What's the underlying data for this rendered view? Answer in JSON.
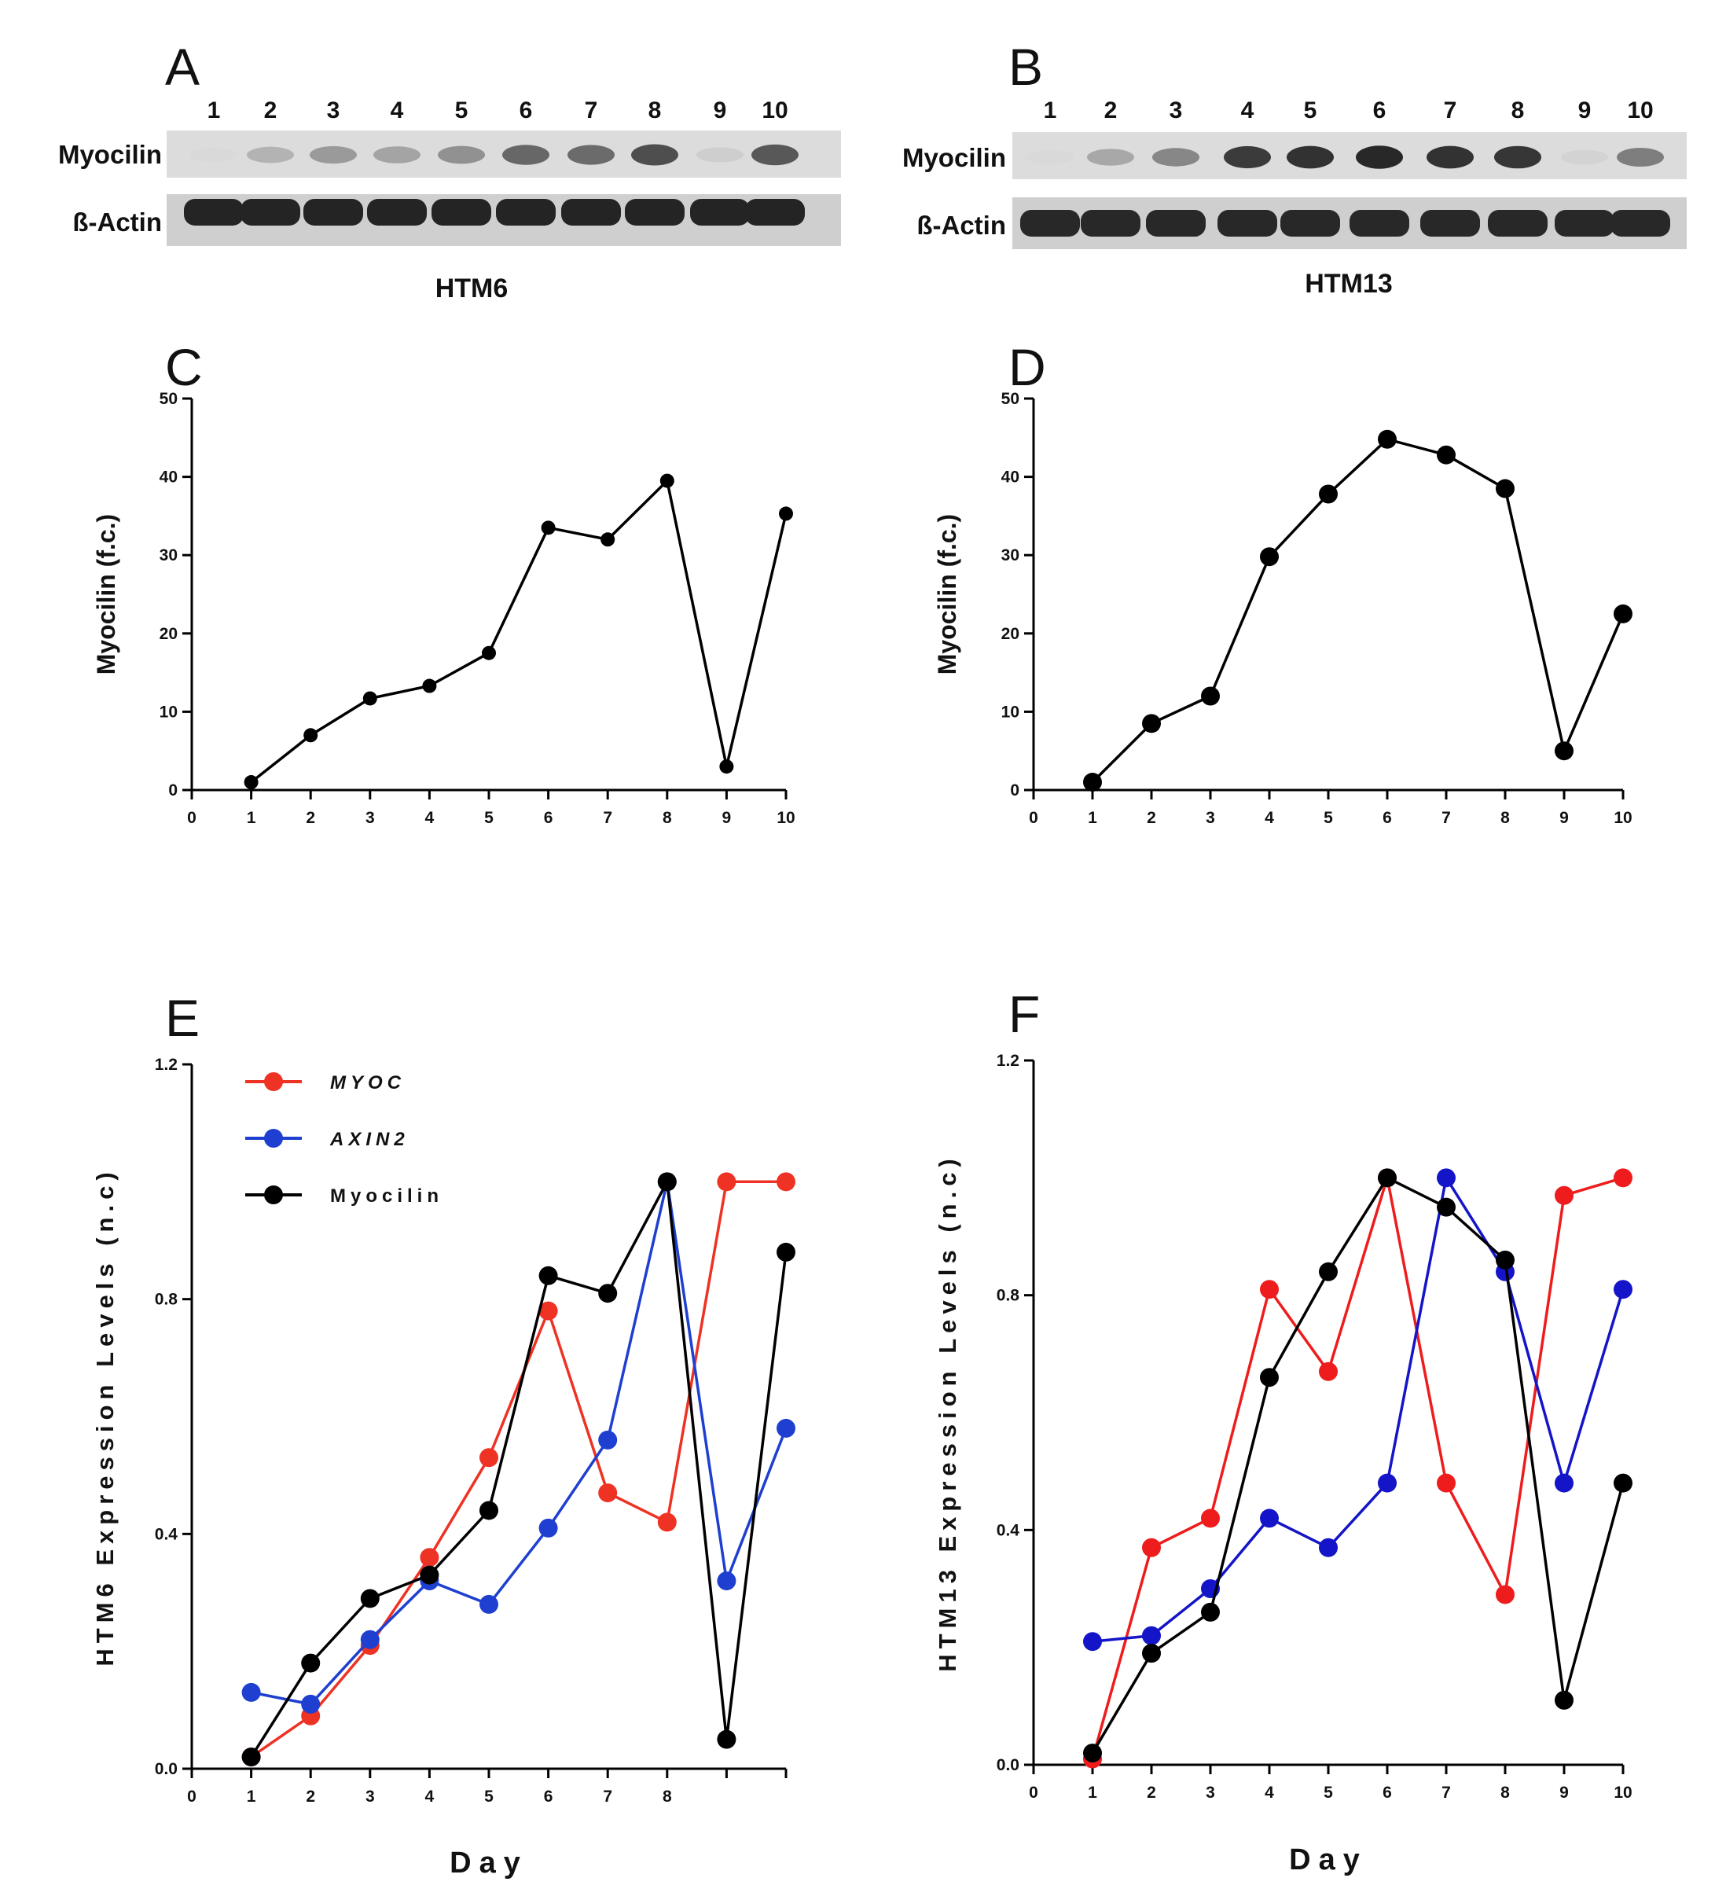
{
  "panels": {
    "A": {
      "letter": "A",
      "lanes": [
        "1",
        "2",
        "3",
        "4",
        "5",
        "6",
        "7",
        "8",
        "9",
        "10"
      ],
      "row_labels": [
        "Myocilin",
        "ß-Actin"
      ],
      "cell_line": "HTM6",
      "myocilin_band_intensity": [
        0.02,
        0.22,
        0.35,
        0.3,
        0.4,
        0.62,
        0.6,
        0.75,
        0.08,
        0.7
      ],
      "actin_band_intensity": [
        0.92,
        0.92,
        0.92,
        0.92,
        0.92,
        0.92,
        0.92,
        0.92,
        0.92,
        0.92
      ]
    },
    "B": {
      "letter": "B",
      "lanes": [
        "1",
        "2",
        "3",
        "4",
        "5",
        "6",
        "7",
        "8",
        "9",
        "10"
      ],
      "row_labels": [
        "Myocilin",
        "ß-Actin"
      ],
      "cell_line": "HTM13",
      "myocilin_band_intensity": [
        0.02,
        0.28,
        0.45,
        0.85,
        0.9,
        0.95,
        0.9,
        0.88,
        0.05,
        0.5
      ],
      "actin_band_intensity": [
        0.9,
        0.9,
        0.9,
        0.9,
        0.9,
        0.9,
        0.9,
        0.9,
        0.9,
        0.9
      ]
    }
  },
  "chart_data": [
    {
      "panel": "C",
      "type": "line",
      "ylabel": "Myocilin (f.c.)",
      "xlabel": "",
      "xlim": [
        0,
        10
      ],
      "ylim": [
        0,
        50
      ],
      "xticks": [
        "0",
        "1",
        "2",
        "3",
        "4",
        "5",
        "6",
        "7",
        "8",
        "9",
        "10"
      ],
      "yticks": [
        "0",
        "10",
        "20",
        "30",
        "40",
        "50"
      ],
      "series": [
        {
          "color": "#000000",
          "marker_size": "small",
          "x": [
            1,
            2,
            3,
            4,
            5,
            6,
            7,
            8,
            9,
            10
          ],
          "y": [
            1,
            7,
            11.7,
            13.3,
            17.5,
            33.5,
            32,
            39.5,
            3,
            35.3
          ]
        }
      ]
    },
    {
      "panel": "D",
      "type": "line",
      "ylabel": "Myocilin (f.c.)",
      "xlabel": "",
      "xlim": [
        0,
        10
      ],
      "ylim": [
        0,
        50
      ],
      "xticks": [
        "0",
        "1",
        "2",
        "3",
        "4",
        "5",
        "6",
        "7",
        "8",
        "9",
        "10"
      ],
      "yticks": [
        "0",
        "10",
        "20",
        "30",
        "40",
        "50"
      ],
      "series": [
        {
          "color": "#000000",
          "marker_size": "large",
          "x": [
            1,
            2,
            3,
            4,
            5,
            6,
            7,
            8,
            9,
            10
          ],
          "y": [
            1,
            8.5,
            12,
            29.8,
            37.8,
            44.8,
            42.8,
            38.5,
            5,
            22.5
          ]
        }
      ]
    },
    {
      "panel": "E",
      "type": "line",
      "ylabel": "HTM6 Expression Levels (n.c)",
      "xlabel": "Day",
      "xlim": [
        0,
        10
      ],
      "ylim": [
        0,
        1.2
      ],
      "xticks": [
        "0",
        "1",
        "2",
        "3",
        "4",
        "5",
        "6",
        "7",
        "8",
        "",
        ""
      ],
      "yticks": [
        "0.0",
        "0.4",
        "0.8",
        "1.2"
      ],
      "legend_position": "top-left",
      "series": [
        {
          "name": "MYOC",
          "italic": true,
          "color": "#ee3224",
          "x": [
            1,
            2,
            3,
            4,
            5,
            6,
            7,
            8,
            9,
            10
          ],
          "y": [
            0.02,
            0.09,
            0.21,
            0.36,
            0.53,
            0.78,
            0.47,
            0.42,
            1.0,
            1.0
          ]
        },
        {
          "name": "AXIN2",
          "italic": true,
          "color": "#1e3fd0",
          "x": [
            1,
            2,
            3,
            4,
            5,
            6,
            7,
            8,
            9,
            10
          ],
          "y": [
            0.13,
            0.11,
            0.22,
            0.32,
            0.28,
            0.41,
            0.56,
            1.0,
            0.32,
            0.58
          ]
        },
        {
          "name": "Myocilin",
          "italic": false,
          "color": "#000000",
          "x": [
            1,
            2,
            3,
            4,
            5,
            6,
            7,
            8,
            9,
            10
          ],
          "y": [
            0.02,
            0.18,
            0.29,
            0.33,
            0.44,
            0.84,
            0.81,
            1.0,
            0.05,
            0.88
          ]
        }
      ]
    },
    {
      "panel": "F",
      "type": "line",
      "ylabel": "HTM13 Expression Levels (n.c)",
      "xlabel": "Day",
      "xlim": [
        0,
        10
      ],
      "ylim": [
        0,
        1.2
      ],
      "xticks": [
        "0",
        "1",
        "2",
        "3",
        "4",
        "5",
        "6",
        "7",
        "8",
        "9",
        "10"
      ],
      "yticks": [
        "0.0",
        "0.4",
        "0.8",
        "1.2"
      ],
      "series": [
        {
          "name": "MYOC",
          "color": "#ee1c1c",
          "x": [
            1,
            2,
            3,
            4,
            5,
            6,
            7,
            8,
            9,
            10
          ],
          "y": [
            0.01,
            0.37,
            0.42,
            0.81,
            0.67,
            1.0,
            0.48,
            0.29,
            0.97,
            1.0
          ]
        },
        {
          "name": "AXIN2",
          "color": "#1414c8",
          "x": [
            1,
            2,
            3,
            4,
            5,
            6,
            7,
            8,
            9,
            10
          ],
          "y": [
            0.21,
            0.22,
            0.3,
            0.42,
            0.37,
            0.48,
            1.0,
            0.84,
            0.48,
            0.81
          ]
        },
        {
          "name": "Myocilin",
          "color": "#000000",
          "x": [
            1,
            2,
            3,
            4,
            5,
            6,
            7,
            8,
            9,
            10
          ],
          "y": [
            0.02,
            0.19,
            0.26,
            0.66,
            0.84,
            1.0,
            0.95,
            0.86,
            0.11,
            0.48
          ]
        }
      ]
    }
  ]
}
